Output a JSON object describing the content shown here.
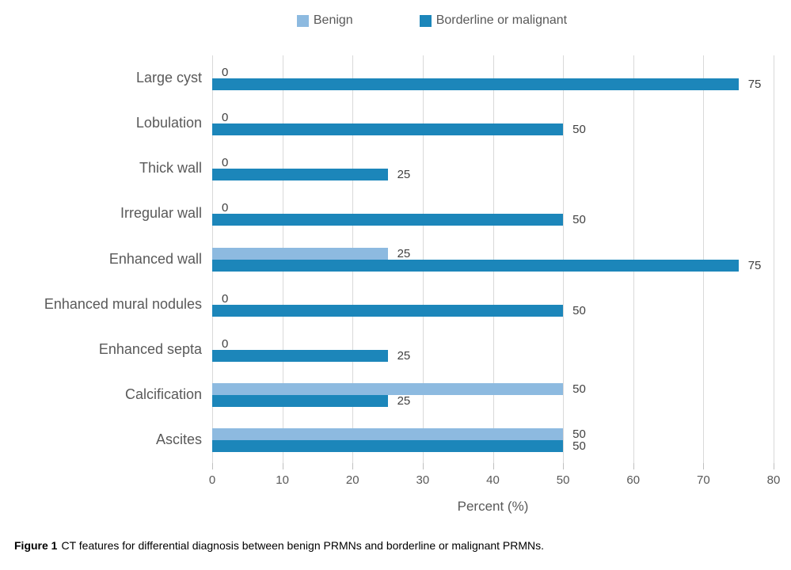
{
  "chart_data": {
    "type": "bar",
    "orientation": "horizontal",
    "categories": [
      "Large cyst",
      "Lobulation",
      "Thick wall",
      "Irregular wall",
      "Enhanced wall",
      "Enhanced mural nodules",
      "Enhanced septa",
      "Calcification",
      "Ascites"
    ],
    "series": [
      {
        "name": "Benign",
        "color": "#8dbae0",
        "values": [
          0,
          0,
          0,
          0,
          25,
          0,
          0,
          50,
          50
        ]
      },
      {
        "name": "Borderline or malignant",
        "color": "#1c86ba",
        "values": [
          75,
          50,
          25,
          50,
          75,
          50,
          25,
          25,
          50
        ]
      }
    ],
    "xlabel": "Percent (%)",
    "xlim": [
      0,
      80
    ],
    "xticks": [
      0,
      10,
      20,
      30,
      40,
      50,
      60,
      70,
      80
    ],
    "grid": true,
    "legend_position": "top",
    "data_labels": "outside-end"
  },
  "caption": {
    "prefix": "Figure 1",
    "text": "CT features for differential diagnosis between benign PRMNs and borderline or malignant PRMNs."
  },
  "colors": {
    "benign": "#8dbae0",
    "malignant": "#1c86ba",
    "gridline": "#d9d9d9",
    "tick": "#bfbfbf",
    "axis_text": "#595959",
    "value_text": "#404040",
    "background": "#ffffff"
  }
}
